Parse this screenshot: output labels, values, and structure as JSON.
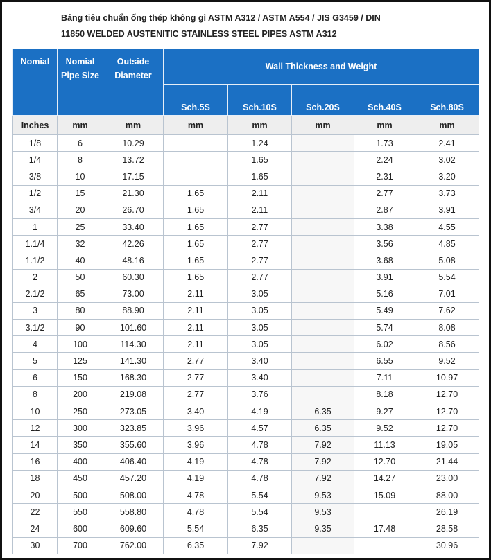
{
  "title_lines": [
    "Bảng tiêu chuẩn ống thép không gỉ ASTM A312 / ASTM A554 / JIS G3459 / DIN",
    "11850 WELDED AUSTENITIC STAINLESS STEEL PIPES ASTM A312"
  ],
  "table": {
    "headers": [
      "Nomial",
      "Nomial Pipe Size",
      "Outside Diameter",
      "Wall Thickness and Weight"
    ],
    "sub_headers": [
      "Sch.5S",
      "Sch.10S",
      "Sch.20S",
      "Sch.40S",
      "Sch.80S"
    ],
    "units": [
      "Inches",
      "mm",
      "mm",
      "mm",
      "mm",
      "mm",
      "mm",
      "mm"
    ],
    "rows": [
      [
        "1/8",
        "6",
        "10.29",
        null,
        "1.24",
        null,
        "1.73",
        "2.41"
      ],
      [
        "1/4",
        "8",
        "13.72",
        null,
        "1.65",
        null,
        "2.24",
        "3.02"
      ],
      [
        "3/8",
        "10",
        "17.15",
        null,
        "1.65",
        null,
        "2.31",
        "3.20"
      ],
      [
        "1/2",
        "15",
        "21.30",
        "1.65",
        "2.11",
        null,
        "2.77",
        "3.73"
      ],
      [
        "3/4",
        "20",
        "26.70",
        "1.65",
        "2.11",
        null,
        "2.87",
        "3.91"
      ],
      [
        "1",
        "25",
        "33.40",
        "1.65",
        "2.77",
        null,
        "3.38",
        "4.55"
      ],
      [
        "1.1/4",
        "32",
        "42.26",
        "1.65",
        "2.77",
        null,
        "3.56",
        "4.85"
      ],
      [
        "1.1/2",
        "40",
        "48.16",
        "1.65",
        "2.77",
        null,
        "3.68",
        "5.08"
      ],
      [
        "2",
        "50",
        "60.30",
        "1.65",
        "2.77",
        null,
        "3.91",
        "5.54"
      ],
      [
        "2.1/2",
        "65",
        "73.00",
        "2.11",
        "3.05",
        null,
        "5.16",
        "7.01"
      ],
      [
        "3",
        "80",
        "88.90",
        "2.11",
        "3.05",
        null,
        "5.49",
        "7.62"
      ],
      [
        "3.1/2",
        "90",
        "101.60",
        "2.11",
        "3.05",
        null,
        "5.74",
        "8.08"
      ],
      [
        "4",
        "100",
        "114.30",
        "2.11",
        "3.05",
        null,
        "6.02",
        "8.56"
      ],
      [
        "5",
        "125",
        "141.30",
        "2.77",
        "3.40",
        null,
        "6.55",
        "9.52"
      ],
      [
        "6",
        "150",
        "168.30",
        "2.77",
        "3.40",
        null,
        "7.11",
        "10.97"
      ],
      [
        "8",
        "200",
        "219.08",
        "2.77",
        "3.76",
        null,
        "8.18",
        "12.70"
      ],
      [
        "10",
        "250",
        "273.05",
        "3.40",
        "4.19",
        "6.35",
        "9.27",
        "12.70"
      ],
      [
        "12",
        "300",
        "323.85",
        "3.96",
        "4.57",
        "6.35",
        "9.52",
        "12.70"
      ],
      [
        "14",
        "350",
        "355.60",
        "3.96",
        "4.78",
        "7.92",
        "11.13",
        "19.05"
      ],
      [
        "16",
        "400",
        "406.40",
        "4.19",
        "4.78",
        "7.92",
        "12.70",
        "21.44"
      ],
      [
        "18",
        "450",
        "457.20",
        "4.19",
        "4.78",
        "7.92",
        "14.27",
        "23.00"
      ],
      [
        "20",
        "500",
        "508.00",
        "4.78",
        "5.54",
        "9.53",
        "15.09",
        "88.00"
      ],
      [
        "22",
        "550",
        "558.80",
        "4.78",
        "5.54",
        "9.53",
        null,
        "26.19"
      ],
      [
        "24",
        "600",
        "609.60",
        "5.54",
        "6.35",
        "9.35",
        "17.48",
        "28.58"
      ],
      [
        "30",
        "700",
        "762.00",
        "6.35",
        "7.92",
        null,
        null,
        "30.96"
      ]
    ]
  }
}
